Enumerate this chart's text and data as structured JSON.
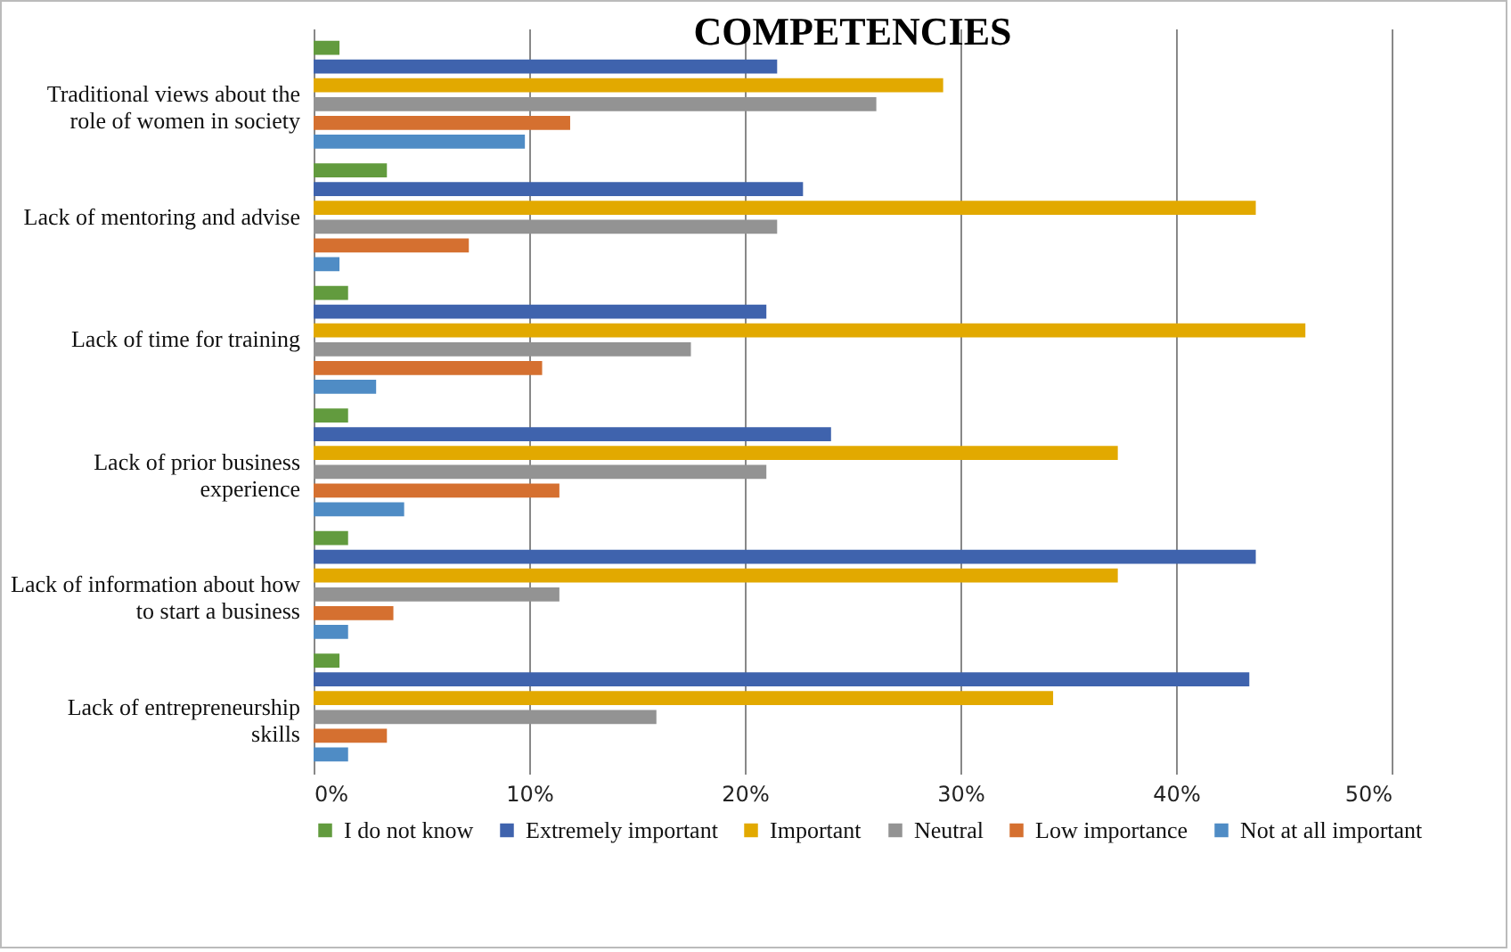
{
  "chart_data": {
    "type": "bar",
    "orientation": "horizontal",
    "title": "COMPETENCIES",
    "categories": [
      "Traditional views about the role of women in society",
      "Lack of mentoring and advise",
      "Lack of time for training",
      "Lack of prior business experience",
      "Lack of information about how to start a business",
      "Lack of entrepreneurship skills"
    ],
    "series": [
      {
        "name": "I do not know",
        "color": "#629b3e",
        "values": [
          1.2,
          3.4,
          1.6,
          1.6,
          1.6,
          1.2
        ]
      },
      {
        "name": "Extremely important",
        "color": "#3f63ad",
        "values": [
          21.5,
          22.7,
          21.0,
          24.0,
          43.7,
          43.4
        ]
      },
      {
        "name": "Important",
        "color": "#e2a900",
        "values": [
          29.2,
          43.7,
          46.0,
          37.3,
          37.3,
          34.3
        ]
      },
      {
        "name": "Neutral",
        "color": "#939393",
        "values": [
          26.1,
          21.5,
          17.5,
          21.0,
          11.4,
          15.9
        ]
      },
      {
        "name": "Low importance",
        "color": "#d57030",
        "values": [
          11.9,
          7.2,
          10.6,
          11.4,
          3.7,
          3.4
        ]
      },
      {
        "name": "Not at all important",
        "color": "#4f8cc5",
        "values": [
          9.8,
          1.2,
          2.9,
          4.2,
          1.6,
          1.6
        ]
      }
    ],
    "xlim": [
      0,
      50
    ],
    "xticks": [
      {
        "value": 0,
        "label": "0%"
      },
      {
        "value": 10,
        "label": "10%"
      },
      {
        "value": 20,
        "label": "20%"
      },
      {
        "value": 30,
        "label": "30%"
      },
      {
        "value": 40,
        "label": "40%"
      },
      {
        "value": 50,
        "label": "50%"
      }
    ],
    "grid": "x",
    "legend": "bottom"
  }
}
